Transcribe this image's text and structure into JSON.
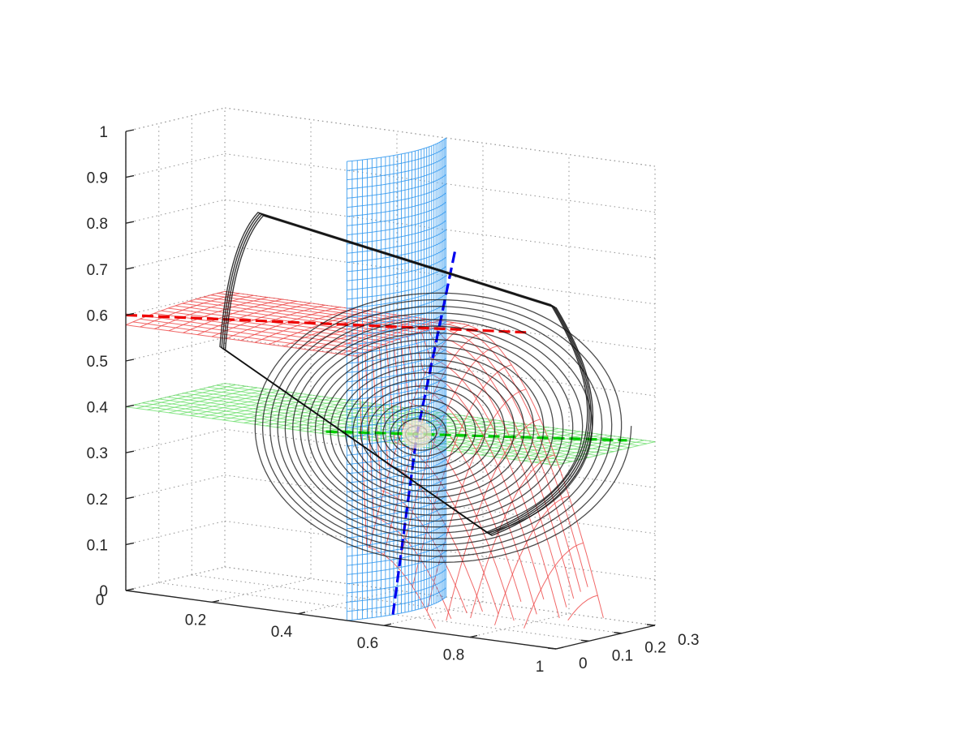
{
  "chart_data": {
    "type": "3d-line-surface",
    "title": "",
    "xlabel": "",
    "ylabel": "",
    "zlabel": "",
    "grid": true,
    "x_axis": {
      "ticks": [
        "0",
        "0.2",
        "0.4",
        "0.6",
        "0.8",
        "1"
      ],
      "range": [
        0,
        1
      ]
    },
    "y_axis": {
      "ticks": [
        "0",
        "0.1",
        "0.2",
        "0.3"
      ],
      "range": [
        0,
        0.3
      ]
    },
    "z_axis": {
      "ticks": [
        "0",
        "0.1",
        "0.2",
        "0.3",
        "0.4",
        "0.5",
        "0.6",
        "0.7",
        "0.8",
        "0.9",
        "1"
      ],
      "range": [
        0,
        1
      ]
    },
    "equilibrium": {
      "x": 0.6,
      "y": 0.1,
      "z": 0.4
    },
    "nullcline_surfaces": [
      {
        "name": "",
        "kind": "plane",
        "plane": "z",
        "value": 0.4,
        "color": "#66dd66"
      },
      {
        "name": "",
        "kind": "curved-wall",
        "plane": "x",
        "value": 0.6,
        "color": "#3399ee"
      },
      {
        "name": "",
        "kind": "parabolic-sheet",
        "ridge_z": 0.6,
        "color": "#ee4444"
      }
    ],
    "intersection_lines": [
      {
        "colors": [
          "#0000ee",
          "#00cc00",
          "#ee0000"
        ],
        "style": "dashed"
      }
    ],
    "trajectory": {
      "color": "#111111",
      "kind": "spiral-to-equilibrium",
      "outer_loop": [
        {
          "x": 0.05,
          "y": 0.22,
          "z": 0.5
        },
        {
          "x": 0.1,
          "y": 0.27,
          "z": 0.79
        },
        {
          "x": 0.85,
          "y": 0.18,
          "z": 0.7
        },
        {
          "x": 0.8,
          "y": 0.05,
          "z": 0.22
        }
      ]
    },
    "colors": {
      "axis": "#262626",
      "grid": "#9a9a9a"
    }
  }
}
